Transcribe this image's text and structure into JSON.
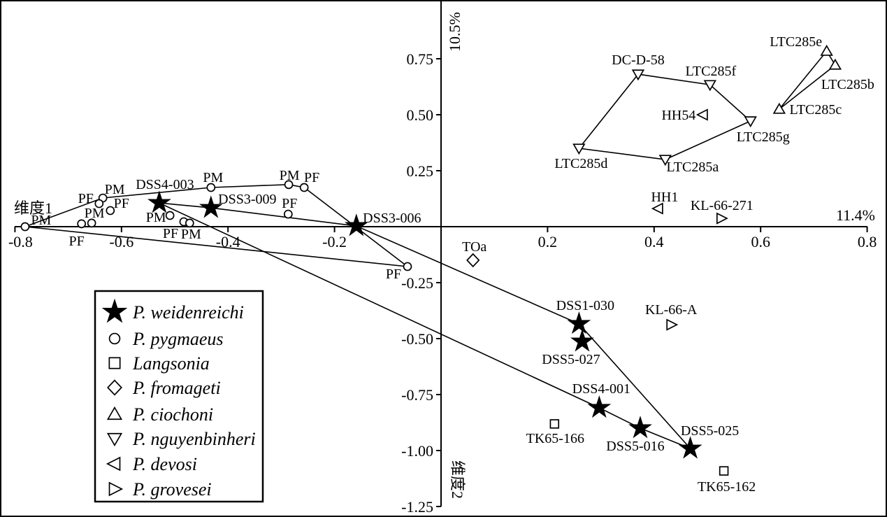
{
  "axes": {
    "x_label": "维度1",
    "y_label": "维度2",
    "x_variance": "11.4%",
    "y_variance": "10.5%",
    "xlim": [
      -0.8,
      0.8
    ],
    "ylim": [
      -1.25,
      0.85
    ],
    "x_ticks": [
      {
        "v": -0.8,
        "label": "-0.8"
      },
      {
        "v": -0.6,
        "label": "-0.6"
      },
      {
        "v": -0.4,
        "label": "-0.4"
      },
      {
        "v": -0.2,
        "label": "-0.2"
      },
      {
        "v": 0.2,
        "label": "0.2"
      },
      {
        "v": 0.4,
        "label": "0.4"
      },
      {
        "v": 0.6,
        "label": "0.6"
      },
      {
        "v": 0.8,
        "label": "0.8"
      }
    ],
    "y_ticks": [
      {
        "v": 0.75,
        "label": "0.75"
      },
      {
        "v": 0.5,
        "label": "0.50"
      },
      {
        "v": 0.25,
        "label": "0.25"
      },
      {
        "v": -0.25,
        "label": "-0.25"
      },
      {
        "v": -0.5,
        "label": "-0.50"
      },
      {
        "v": -0.75,
        "label": "-0.75"
      },
      {
        "v": -1.0,
        "label": "-1.00"
      },
      {
        "v": -1.25,
        "label": "-1.25"
      }
    ]
  },
  "chart_data": {
    "type": "scatter",
    "title": "",
    "xlabel": "维度1 (11.4%)",
    "ylabel": "维度2 (10.5%)",
    "xlim": [
      -0.8,
      0.8
    ],
    "ylim": [
      -1.25,
      0.85
    ],
    "series": [
      {
        "name": "P. weidenreichi",
        "marker": "star",
        "points": [
          {
            "label": "DSS4-003",
            "x": -0.529,
            "y": 0.106,
            "dx": 8,
            "dy": -27
          },
          {
            "label": "DSS3-009",
            "x": -0.432,
            "y": 0.084,
            "dx": 52,
            "dy": -13
          },
          {
            "label": "DSS3-006",
            "x": -0.159,
            "y": 0.003,
            "dx": 51,
            "dy": -12
          },
          {
            "label": "DSS1-030",
            "x": 0.259,
            "y": -0.434,
            "dx": 9,
            "dy": -27
          },
          {
            "label": "DSS5-027",
            "x": 0.265,
            "y": -0.513,
            "dx": -16,
            "dy": 25
          },
          {
            "label": "DSS4-001",
            "x": 0.297,
            "y": -0.809,
            "dx": 3,
            "dy": -28
          },
          {
            "label": "DSS5-016",
            "x": 0.374,
            "y": -0.9,
            "dx": -7,
            "dy": 25
          },
          {
            "label": "DSS5-025",
            "x": 0.468,
            "y": -0.991,
            "dx": 28,
            "dy": -26
          }
        ],
        "hull": [
          0,
          1,
          2,
          3,
          7,
          6,
          5
        ]
      },
      {
        "name": "P. pygmaeus",
        "marker": "circle",
        "points": [
          {
            "label": "PM",
            "x": -0.781,
            "y": 0.0,
            "dx": 23,
            "dy": -10
          },
          {
            "label": "PF",
            "x": -0.675,
            "y": 0.013,
            "dx": -7,
            "dy": 24
          },
          {
            "label": "PM",
            "x": -0.656,
            "y": 0.016,
            "dx": 4,
            "dy": -15
          },
          {
            "label": "PM",
            "x": -0.635,
            "y": 0.128,
            "dx": 17,
            "dy": -13
          },
          {
            "label": "PF",
            "x": -0.642,
            "y": 0.103,
            "dx": -19,
            "dy": -8
          },
          {
            "label": "PF",
            "x": -0.621,
            "y": 0.072,
            "dx": 16,
            "dy": -11
          },
          {
            "label": "PM",
            "x": -0.509,
            "y": 0.05,
            "dx": -20,
            "dy": 2
          },
          {
            "label": "PF",
            "x": -0.483,
            "y": 0.022,
            "dx": -19,
            "dy": 16
          },
          {
            "label": "PM",
            "x": -0.472,
            "y": 0.016,
            "dx": 2,
            "dy": 15
          },
          {
            "label": "PM",
            "x": -0.432,
            "y": 0.175,
            "dx": 3,
            "dy": -15
          },
          {
            "label": "PM",
            "x": -0.286,
            "y": 0.188,
            "dx": 1,
            "dy": -14
          },
          {
            "label": "PF",
            "x": -0.257,
            "y": 0.175,
            "dx": 11,
            "dy": -15
          },
          {
            "label": "PF",
            "x": -0.287,
            "y": 0.056,
            "dx": 2,
            "dy": -16
          },
          {
            "label": "PF",
            "x": -0.063,
            "y": -0.178,
            "dx": -20,
            "dy": 10
          }
        ],
        "hull": [
          0,
          3,
          9,
          10,
          11,
          13
        ]
      },
      {
        "name": "Langsonia",
        "marker": "square",
        "points": [
          {
            "label": "TK65-166",
            "x": 0.213,
            "y": -0.881,
            "dx": 1,
            "dy": 20
          },
          {
            "label": "TK65-162",
            "x": 0.531,
            "y": -1.091,
            "dx": 4,
            "dy": 22
          }
        ]
      },
      {
        "name": "P. fromageti",
        "marker": "diamond",
        "points": [
          {
            "label": "TOa",
            "x": 0.06,
            "y": -0.15,
            "dx": 2,
            "dy": -20
          }
        ]
      },
      {
        "name": "P. ciochoni",
        "marker": "tri-up",
        "points": [
          {
            "label": "LTC285e",
            "x": 0.724,
            "y": 0.784,
            "dx": -44,
            "dy": -14
          },
          {
            "label": "LTC285b",
            "x": 0.74,
            "y": 0.722,
            "dx": 18,
            "dy": 27
          },
          {
            "label": "LTC285c",
            "x": 0.635,
            "y": 0.525,
            "dx": 52,
            "dy": 0
          }
        ],
        "hull": [
          0,
          1,
          2
        ]
      },
      {
        "name": "P. nguyenbinheri",
        "marker": "tri-down",
        "points": [
          {
            "label": "DC-D-58",
            "x": 0.37,
            "y": 0.681,
            "dx": 0,
            "dy": -21
          },
          {
            "label": "LTC285f",
            "x": 0.505,
            "y": 0.634,
            "dx": 1,
            "dy": -20
          },
          {
            "label": "LTC285g",
            "x": 0.581,
            "y": 0.472,
            "dx": 18,
            "dy": 22
          },
          {
            "label": "LTC285a",
            "x": 0.421,
            "y": 0.3,
            "dx": 39,
            "dy": 10
          },
          {
            "label": "LTC285d",
            "x": 0.259,
            "y": 0.35,
            "dx": 3,
            "dy": 21
          }
        ],
        "hull": [
          0,
          1,
          2,
          3,
          4
        ]
      },
      {
        "name": "P. devosi",
        "marker": "tri-left",
        "points": [
          {
            "label": "HH54",
            "x": 0.492,
            "y": 0.5,
            "dx": -35,
            "dy": 0
          },
          {
            "label": "HH1",
            "x": 0.408,
            "y": 0.081,
            "dx": 9,
            "dy": -17
          }
        ]
      },
      {
        "name": "P. grovesei",
        "marker": "tri-right",
        "points": [
          {
            "label": "KL-66-271",
            "x": 0.526,
            "y": 0.037,
            "dx": 1,
            "dy": -19
          },
          {
            "label": "KL-66-A",
            "x": 0.432,
            "y": -0.438,
            "dx": 0,
            "dy": -22
          }
        ]
      }
    ]
  },
  "legend": {
    "items": [
      {
        "symbol": "star",
        "label": "P. weidenreichi"
      },
      {
        "symbol": "circle",
        "label": "P. pygmaeus"
      },
      {
        "symbol": "square",
        "label": "Langsonia"
      },
      {
        "symbol": "diamond",
        "label": "P. fromageti"
      },
      {
        "symbol": "tri-up",
        "label": "P. ciochoni"
      },
      {
        "symbol": "tri-down",
        "label": "P. nguyenbinheri"
      },
      {
        "symbol": "tri-left",
        "label": "P. devosi"
      },
      {
        "symbol": "tri-right",
        "label": "P. grovesei"
      }
    ]
  }
}
